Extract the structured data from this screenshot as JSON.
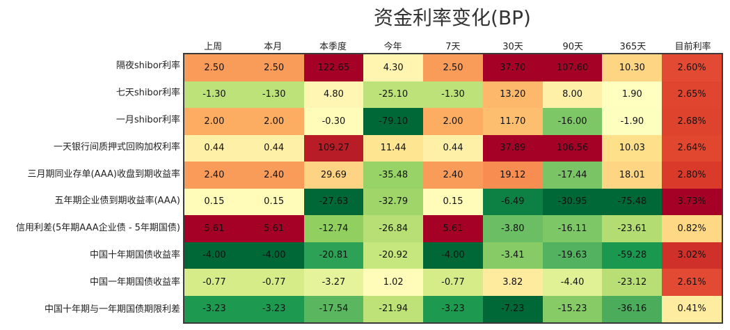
{
  "title": "资金利率变化(BP)",
  "columns": [
    "上周",
    "本月",
    "本季度",
    "今年",
    "7天",
    "30天",
    "90天",
    "365天",
    "目前利率"
  ],
  "rows": [
    {
      "label": "隔夜shibor利率",
      "values": [
        "2.50",
        "2.50",
        "122.65",
        "4.30",
        "2.50",
        "37.70",
        "107.60",
        "10.30",
        "2.60%"
      ],
      "colors": [
        "#f99c59",
        "#f99c59",
        "#a50026",
        "#fff5b0",
        "#f99c59",
        "#a50026",
        "#a50026",
        "#fed683",
        "#e34a33"
      ]
    },
    {
      "label": "七天shibor利率",
      "values": [
        "-1.30",
        "-1.30",
        "4.80",
        "-25.10",
        "-1.30",
        "13.20",
        "8.00",
        "1.90",
        "2.65%"
      ],
      "colors": [
        "#bde27a",
        "#bde27a",
        "#fff6b3",
        "#bde27a",
        "#bde27a",
        "#fdb86b",
        "#fff0a8",
        "#ffffbf",
        "#e0462f"
      ]
    },
    {
      "label": "一月shibor利率",
      "values": [
        "2.00",
        "2.00",
        "-0.30",
        "-79.10",
        "2.00",
        "11.70",
        "-16.00",
        "-1.90",
        "2.68%"
      ],
      "colors": [
        "#fdad62",
        "#fdad62",
        "#fffcba",
        "#006837",
        "#fdad62",
        "#fdbf6f",
        "#7ec766",
        "#fcffbd",
        "#dd432d"
      ]
    },
    {
      "label": "一天银行间质押式回购加权利率",
      "values": [
        "0.44",
        "0.44",
        "109.27",
        "11.44",
        "0.44",
        "37.89",
        "106.56",
        "10.03",
        "2.64%"
      ],
      "colors": [
        "#fff0a8",
        "#fff0a8",
        "#b81c27",
        "#fee592",
        "#fff0a8",
        "#a50026",
        "#a50026",
        "#fee08b",
        "#e1472f"
      ]
    },
    {
      "label": "三月期同业存单(AAA)收盘到期收益率",
      "values": [
        "2.40",
        "2.40",
        "29.69",
        "-35.48",
        "2.40",
        "19.12",
        "-17.44",
        "18.01",
        "2.80%"
      ],
      "colors": [
        "#f99c59",
        "#f99c59",
        "#fed384",
        "#98d368",
        "#f99c59",
        "#f88d51",
        "#7ac465",
        "#fed683",
        "#d93a2a"
      ]
    },
    {
      "label": "五年期企业债到期收益率(AAA)",
      "values": [
        "0.15",
        "0.15",
        "-27.63",
        "-32.79",
        "0.15",
        "-6.49",
        "-30.95",
        "-75.48",
        "3.73%"
      ],
      "colors": [
        "#fffbb9",
        "#fffbb9",
        "#006837",
        "#9fd569",
        "#fffbb9",
        "#0d8044",
        "#006837",
        "#006837",
        "#a50026"
      ]
    },
    {
      "label": "信用利差(5年期AAA企业债 - 5年期国债)",
      "values": [
        "5.61",
        "5.61",
        "-12.74",
        "-26.84",
        "5.61",
        "-3.80",
        "-16.11",
        "-23.61",
        "0.82%"
      ],
      "colors": [
        "#a50026",
        "#a50026",
        "#91cf60",
        "#b7df75",
        "#a50026",
        "#6bbe64",
        "#7ec766",
        "#b3dd72",
        "#fed884"
      ]
    },
    {
      "label": "中国十年期国债收益率",
      "values": [
        "-4.00",
        "-4.00",
        "-20.81",
        "-20.92",
        "-4.00",
        "-3.41",
        "-19.63",
        "-59.28",
        "3.02%"
      ],
      "colors": [
        "#006837",
        "#006837",
        "#2da155",
        "#c6e67e",
        "#006837",
        "#87cb67",
        "#52b25f",
        "#1a9850",
        "#d0302a"
      ]
    },
    {
      "label": "中国一年期国债收益率",
      "values": [
        "-0.77",
        "-0.77",
        "-3.27",
        "1.02",
        "-0.77",
        "3.82",
        "-4.40",
        "-23.12",
        "2.61%"
      ],
      "colors": [
        "#d5ec88",
        "#d5ec88",
        "#e5f49a",
        "#fffbb8",
        "#d5ec88",
        "#feeb9d",
        "#e0f195",
        "#b7df75",
        "#e34a33"
      ]
    },
    {
      "label": "中国十年期与一年期国债期限利差",
      "values": [
        "-3.23",
        "-3.23",
        "-17.54",
        "-21.94",
        "-3.23",
        "-7.23",
        "-15.23",
        "-36.16",
        "0.41%"
      ],
      "colors": [
        "#1d9a4f",
        "#1d9a4f",
        "#5bb75f",
        "#bfe278",
        "#1d9a4f",
        "#006837",
        "#86cb66",
        "#4bac5c",
        "#feeda0"
      ]
    }
  ],
  "chart_data": {
    "type": "heatmap",
    "title": "资金利率变化(BP)",
    "x": [
      "上周",
      "本月",
      "本季度",
      "今年",
      "7天",
      "30天",
      "90天",
      "365天",
      "目前利率"
    ],
    "y": [
      "隔夜shibor利率",
      "七天shibor利率",
      "一月shibor利率",
      "一天银行间质押式回购加权利率",
      "三月期同业存单(AAA)收盘到期收益率",
      "五年期企业债到期收益率(AAA)",
      "信用利差(5年期AAA企业债 - 5年期国债)",
      "中国十年期国债收益率",
      "中国一年期国债收益率",
      "中国十年期与一年期国债期限利差"
    ],
    "values": [
      [
        2.5,
        2.5,
        122.65,
        4.3,
        2.5,
        37.7,
        107.6,
        10.3,
        2.6
      ],
      [
        -1.3,
        -1.3,
        4.8,
        -25.1,
        -1.3,
        13.2,
        8.0,
        1.9,
        2.65
      ],
      [
        2.0,
        2.0,
        -0.3,
        -79.1,
        2.0,
        11.7,
        -16.0,
        -1.9,
        2.68
      ],
      [
        0.44,
        0.44,
        109.27,
        11.44,
        0.44,
        37.89,
        106.56,
        10.03,
        2.64
      ],
      [
        2.4,
        2.4,
        29.69,
        -35.48,
        2.4,
        19.12,
        -17.44,
        18.01,
        2.8
      ],
      [
        0.15,
        0.15,
        -27.63,
        -32.79,
        0.15,
        -6.49,
        -30.95,
        -75.48,
        3.73
      ],
      [
        5.61,
        5.61,
        -12.74,
        -26.84,
        5.61,
        -3.8,
        -16.11,
        -23.61,
        0.82
      ],
      [
        -4.0,
        -4.0,
        -20.81,
        -20.92,
        -4.0,
        -3.41,
        -19.63,
        -59.28,
        3.02
      ],
      [
        -0.77,
        -0.77,
        -3.27,
        1.02,
        -0.77,
        3.82,
        -4.4,
        -23.12,
        2.61
      ],
      [
        -3.23,
        -3.23,
        -17.54,
        -21.94,
        -3.23,
        -7.23,
        -15.23,
        -36.16,
        0.41
      ]
    ],
    "units": "BP (last column: %)",
    "colormap": "RdYlGn_r (per column)",
    "xlabel": "",
    "ylabel": ""
  }
}
